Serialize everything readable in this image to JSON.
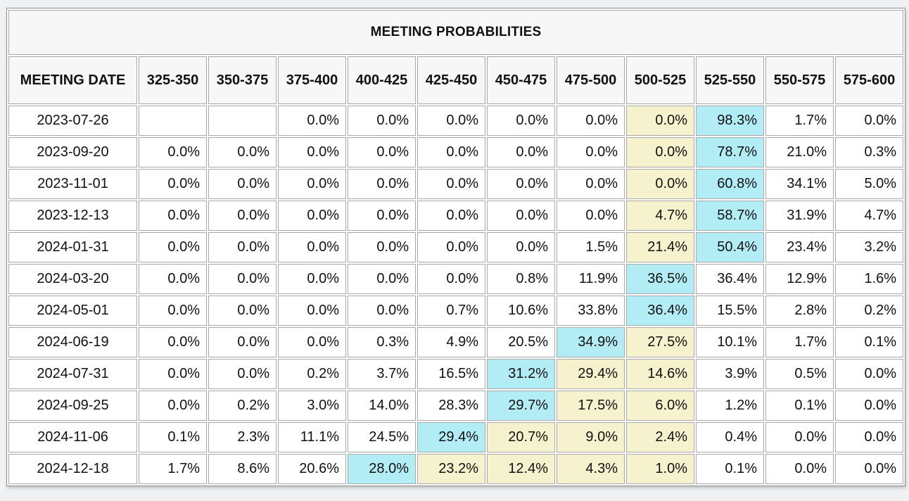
{
  "colors": {
    "highlight_yellow": "#f5f2cd",
    "highlight_cyan": "#b2ecf4",
    "header_bg": "#f7f7f7",
    "page_bg": "#f0f1f3"
  },
  "chart_data": {
    "type": "table",
    "title": "MEETING PROBABILITIES",
    "row_header": "MEETING DATE",
    "columns": [
      "325-350",
      "350-375",
      "375-400",
      "400-425",
      "425-450",
      "450-475",
      "475-500",
      "500-525",
      "525-550",
      "550-575",
      "575-600"
    ],
    "highlight_note_colors": {
      "yellow": "#f5f2cd",
      "cyan": "#b2ecf4"
    },
    "rows": [
      {
        "date": "2023-07-26",
        "values": [
          "",
          "",
          "0.0%",
          "0.0%",
          "0.0%",
          "0.0%",
          "0.0%",
          "0.0%",
          "98.3%",
          "1.7%",
          "0.0%"
        ],
        "highlights": [
          "",
          "",
          "",
          "",
          "",
          "",
          "",
          "yellow",
          "cyan",
          "",
          ""
        ]
      },
      {
        "date": "2023-09-20",
        "values": [
          "0.0%",
          "0.0%",
          "0.0%",
          "0.0%",
          "0.0%",
          "0.0%",
          "0.0%",
          "0.0%",
          "78.7%",
          "21.0%",
          "0.3%"
        ],
        "highlights": [
          "",
          "",
          "",
          "",
          "",
          "",
          "",
          "yellow",
          "cyan",
          "",
          ""
        ]
      },
      {
        "date": "2023-11-01",
        "values": [
          "0.0%",
          "0.0%",
          "0.0%",
          "0.0%",
          "0.0%",
          "0.0%",
          "0.0%",
          "0.0%",
          "60.8%",
          "34.1%",
          "5.0%"
        ],
        "highlights": [
          "",
          "",
          "",
          "",
          "",
          "",
          "",
          "yellow",
          "cyan",
          "",
          ""
        ]
      },
      {
        "date": "2023-12-13",
        "values": [
          "0.0%",
          "0.0%",
          "0.0%",
          "0.0%",
          "0.0%",
          "0.0%",
          "0.0%",
          "4.7%",
          "58.7%",
          "31.9%",
          "4.7%"
        ],
        "highlights": [
          "",
          "",
          "",
          "",
          "",
          "",
          "",
          "yellow",
          "cyan",
          "",
          ""
        ]
      },
      {
        "date": "2024-01-31",
        "values": [
          "0.0%",
          "0.0%",
          "0.0%",
          "0.0%",
          "0.0%",
          "0.0%",
          "1.5%",
          "21.4%",
          "50.4%",
          "23.4%",
          "3.2%"
        ],
        "highlights": [
          "",
          "",
          "",
          "",
          "",
          "",
          "",
          "yellow",
          "cyan",
          "",
          ""
        ]
      },
      {
        "date": "2024-03-20",
        "values": [
          "0.0%",
          "0.0%",
          "0.0%",
          "0.0%",
          "0.0%",
          "0.8%",
          "11.9%",
          "36.5%",
          "36.4%",
          "12.9%",
          "1.6%"
        ],
        "highlights": [
          "",
          "",
          "",
          "",
          "",
          "",
          "",
          "cyan",
          "",
          "",
          ""
        ]
      },
      {
        "date": "2024-05-01",
        "values": [
          "0.0%",
          "0.0%",
          "0.0%",
          "0.0%",
          "0.7%",
          "10.6%",
          "33.8%",
          "36.4%",
          "15.5%",
          "2.8%",
          "0.2%"
        ],
        "highlights": [
          "",
          "",
          "",
          "",
          "",
          "",
          "",
          "cyan",
          "",
          "",
          ""
        ]
      },
      {
        "date": "2024-06-19",
        "values": [
          "0.0%",
          "0.0%",
          "0.0%",
          "0.3%",
          "4.9%",
          "20.5%",
          "34.9%",
          "27.5%",
          "10.1%",
          "1.7%",
          "0.1%"
        ],
        "highlights": [
          "",
          "",
          "",
          "",
          "",
          "",
          "cyan",
          "yellow",
          "",
          "",
          ""
        ]
      },
      {
        "date": "2024-07-31",
        "values": [
          "0.0%",
          "0.0%",
          "0.2%",
          "3.7%",
          "16.5%",
          "31.2%",
          "29.4%",
          "14.6%",
          "3.9%",
          "0.5%",
          "0.0%"
        ],
        "highlights": [
          "",
          "",
          "",
          "",
          "",
          "cyan",
          "yellow",
          "yellow",
          "",
          "",
          ""
        ]
      },
      {
        "date": "2024-09-25",
        "values": [
          "0.0%",
          "0.2%",
          "3.0%",
          "14.0%",
          "28.3%",
          "29.7%",
          "17.5%",
          "6.0%",
          "1.2%",
          "0.1%",
          "0.0%"
        ],
        "highlights": [
          "",
          "",
          "",
          "",
          "",
          "cyan",
          "yellow",
          "yellow",
          "",
          "",
          ""
        ]
      },
      {
        "date": "2024-11-06",
        "values": [
          "0.1%",
          "2.3%",
          "11.1%",
          "24.5%",
          "29.4%",
          "20.7%",
          "9.0%",
          "2.4%",
          "0.4%",
          "0.0%",
          "0.0%"
        ],
        "highlights": [
          "",
          "",
          "",
          "",
          "cyan",
          "yellow",
          "yellow",
          "yellow",
          "",
          "",
          ""
        ]
      },
      {
        "date": "2024-12-18",
        "values": [
          "1.7%",
          "8.6%",
          "20.6%",
          "28.0%",
          "23.2%",
          "12.4%",
          "4.3%",
          "1.0%",
          "0.1%",
          "0.0%",
          "0.0%"
        ],
        "highlights": [
          "",
          "",
          "",
          "cyan",
          "yellow",
          "yellow",
          "yellow",
          "yellow",
          "",
          "",
          ""
        ]
      }
    ]
  }
}
